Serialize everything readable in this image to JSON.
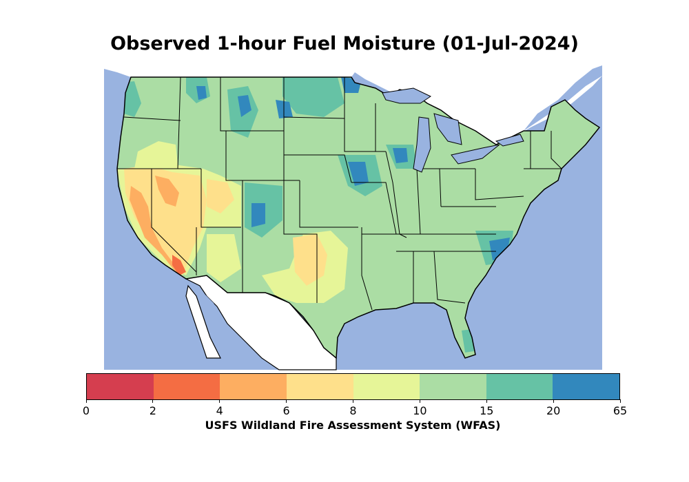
{
  "title": "Observed 1-hour Fuel Moisture (01-Jul-2024)",
  "colorbar": {
    "label": "USFS Wildland Fire Assessment System (WFAS)",
    "ticks": [
      "0",
      "2",
      "4",
      "6",
      "8",
      "10",
      "15",
      "20",
      "65"
    ],
    "colors": [
      "#d53e4f",
      "#f46d43",
      "#fdae61",
      "#fee08b",
      "#e6f598",
      "#abdda4",
      "#66c2a5",
      "#3288bd"
    ]
  },
  "map": {
    "ocean_color": "#99b3e0",
    "land_base_color": "#abdda4"
  }
}
